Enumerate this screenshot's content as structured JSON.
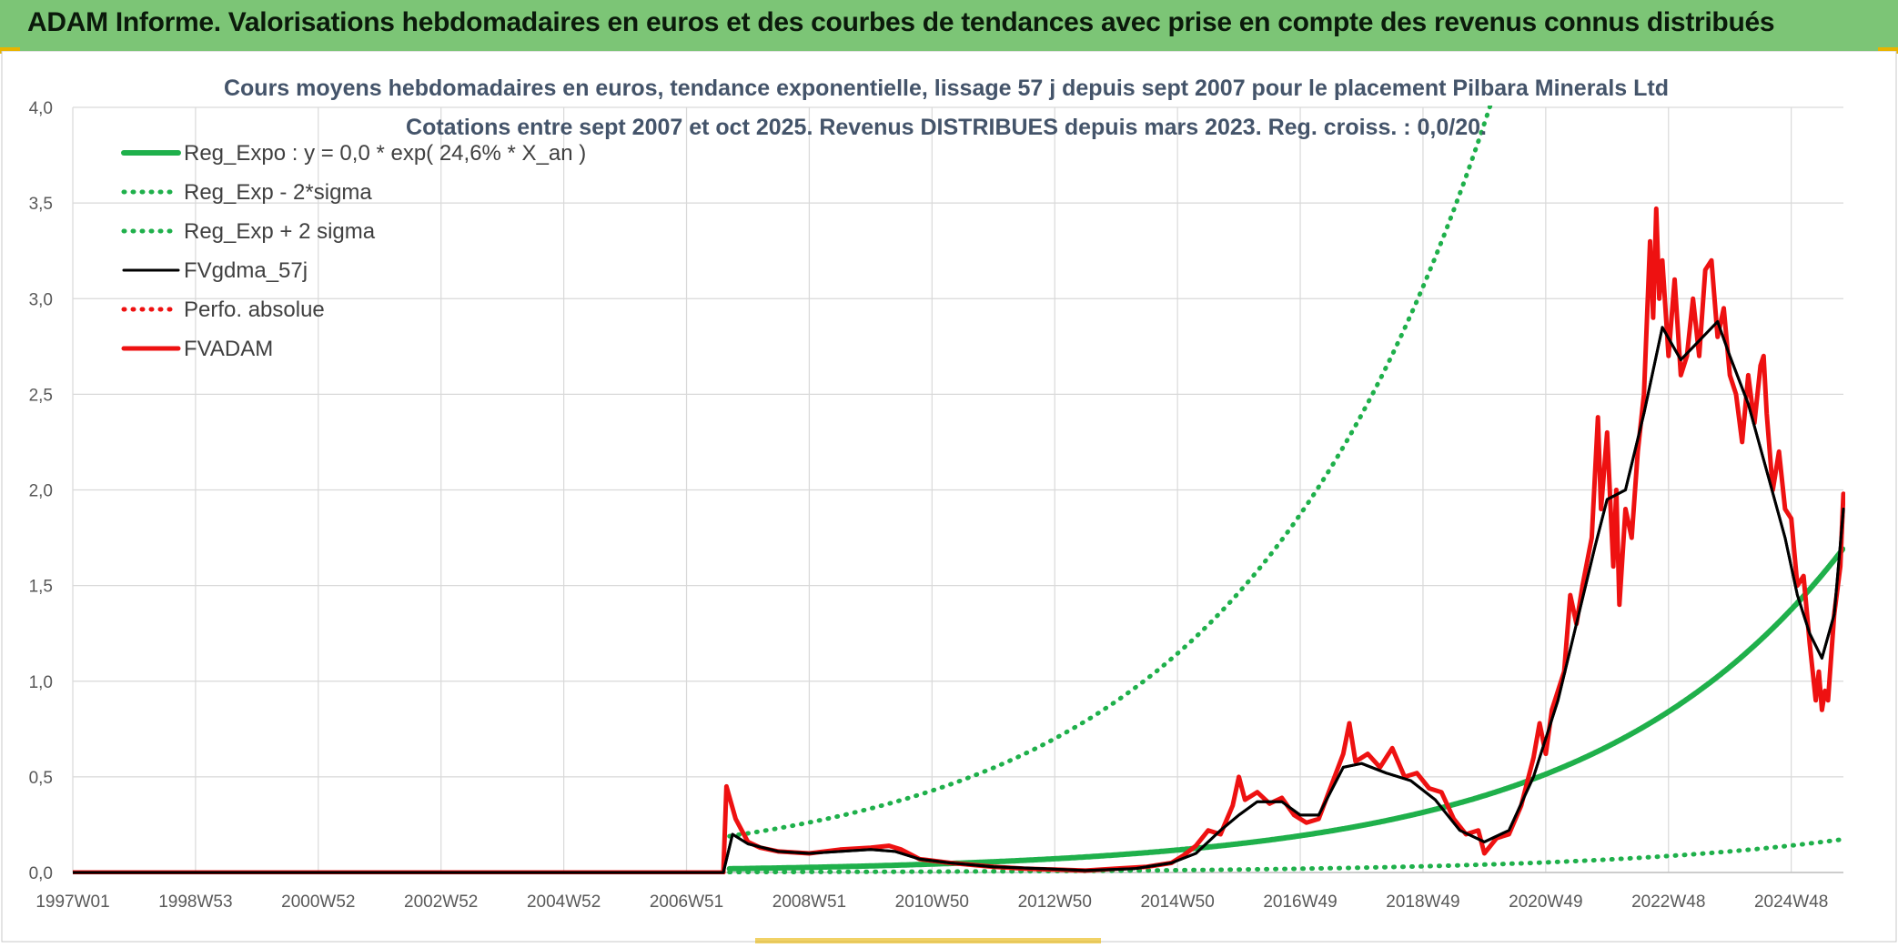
{
  "header": {
    "title": "ADAM Informe. Valorisations hebdomadaires en euros et des courbes de tendances avec prise en compte des revenus connus distribués"
  },
  "colors": {
    "banner": "#7cc576",
    "reg_green": "#1fb04b",
    "fvadam_red": "#ee1111",
    "gdma_black": "#000000",
    "grid": "#d9d9d9"
  },
  "chart_data": {
    "type": "line",
    "title": "Cours moyens hebdomadaires en euros, tendance exponentielle, lissage 57 j depuis sept 2007 pour le placement Pilbara Minerals Ltd",
    "subtitle": "Cotations entre sept 2007 et oct 2025. Revenus DISTRIBUES depuis mars 2023. Reg. croiss. : 0,0/20.",
    "xlabel": "",
    "ylabel": "",
    "ylim": [
      0,
      4
    ],
    "x_range_years": [
      1997.0,
      2025.85
    ],
    "grid": true,
    "legend_position": "top-left",
    "y_ticks": [
      {
        "value": 0.0,
        "label": "0,0"
      },
      {
        "value": 0.5,
        "label": "0,5"
      },
      {
        "value": 1.0,
        "label": "1,0"
      },
      {
        "value": 1.5,
        "label": "1,5"
      },
      {
        "value": 2.0,
        "label": "2,0"
      },
      {
        "value": 2.5,
        "label": "2,5"
      },
      {
        "value": 3.0,
        "label": "3,0"
      },
      {
        "value": 3.5,
        "label": "3,5"
      },
      {
        "value": 4.0,
        "label": "4,0"
      }
    ],
    "x_ticks": [
      {
        "year": 1997.0,
        "label": "1997W01"
      },
      {
        "year": 1999.0,
        "label": "1998W53"
      },
      {
        "year": 2001.0,
        "label": "2000W52"
      },
      {
        "year": 2003.0,
        "label": "2002W52"
      },
      {
        "year": 2005.0,
        "label": "2004W52"
      },
      {
        "year": 2007.0,
        "label": "2006W51"
      },
      {
        "year": 2009.0,
        "label": "2008W51"
      },
      {
        "year": 2011.0,
        "label": "2010W50"
      },
      {
        "year": 2013.0,
        "label": "2012W50"
      },
      {
        "year": 2015.0,
        "label": "2014W50"
      },
      {
        "year": 2017.0,
        "label": "2016W49"
      },
      {
        "year": 2019.0,
        "label": "2018W49"
      },
      {
        "year": 2021.0,
        "label": "2020W49"
      },
      {
        "year": 2023.0,
        "label": "2022W48"
      },
      {
        "year": 2025.0,
        "label": "2024W48"
      }
    ],
    "series": [
      {
        "name": "Reg_Expo : y = 0,0 * exp( 24,6% *  X_an )",
        "style": "solid-thick",
        "color": "#1fb04b",
        "formula": {
          "kind": "exp",
          "a": 0.0195,
          "rate": 0.246,
          "t0": 2007.7
        },
        "from": 2007.7,
        "to": 2025.85
      },
      {
        "name": "Reg_Exp - 2*sigma",
        "style": "dotted",
        "color": "#1fb04b",
        "formula": {
          "kind": "exp",
          "a": 0.002,
          "rate": 0.246,
          "t0": 2007.7
        },
        "from": 2007.7,
        "to": 2025.85
      },
      {
        "name": "Reg_Exp + 2 sigma",
        "style": "dotted",
        "color": "#1fb04b",
        "formula": {
          "kind": "exp",
          "a": 0.19,
          "rate": 0.246,
          "t0": 2007.7
        },
        "from": 2007.7,
        "to": 2025.85
      },
      {
        "name": "FVgdma_57j",
        "style": "solid",
        "color": "#000000",
        "points": [
          [
            1997.0,
            0.0
          ],
          [
            2007.6,
            0.0
          ],
          [
            2007.75,
            0.2
          ],
          [
            2008.0,
            0.15
          ],
          [
            2008.5,
            0.11
          ],
          [
            2009.0,
            0.1
          ],
          [
            2009.5,
            0.11
          ],
          [
            2010.0,
            0.12
          ],
          [
            2010.4,
            0.11
          ],
          [
            2010.8,
            0.07
          ],
          [
            2011.3,
            0.05
          ],
          [
            2012.0,
            0.03
          ],
          [
            2012.8,
            0.02
          ],
          [
            2013.5,
            0.01
          ],
          [
            2014.3,
            0.02
          ],
          [
            2014.9,
            0.05
          ],
          [
            2015.3,
            0.1
          ],
          [
            2015.7,
            0.22
          ],
          [
            2016.0,
            0.3
          ],
          [
            2016.3,
            0.37
          ],
          [
            2016.7,
            0.37
          ],
          [
            2017.0,
            0.3
          ],
          [
            2017.3,
            0.3
          ],
          [
            2017.7,
            0.55
          ],
          [
            2018.0,
            0.57
          ],
          [
            2018.4,
            0.52
          ],
          [
            2018.8,
            0.48
          ],
          [
            2019.2,
            0.38
          ],
          [
            2019.6,
            0.22
          ],
          [
            2020.0,
            0.16
          ],
          [
            2020.4,
            0.22
          ],
          [
            2020.8,
            0.5
          ],
          [
            2021.2,
            0.9
          ],
          [
            2021.5,
            1.3
          ],
          [
            2021.8,
            1.7
          ],
          [
            2022.0,
            1.95
          ],
          [
            2022.3,
            2.0
          ],
          [
            2022.6,
            2.4
          ],
          [
            2022.9,
            2.85
          ],
          [
            2023.2,
            2.68
          ],
          [
            2023.5,
            2.78
          ],
          [
            2023.8,
            2.88
          ],
          [
            2024.0,
            2.7
          ],
          [
            2024.3,
            2.45
          ],
          [
            2024.6,
            2.1
          ],
          [
            2024.9,
            1.75
          ],
          [
            2025.1,
            1.45
          ],
          [
            2025.3,
            1.25
          ],
          [
            2025.5,
            1.12
          ],
          [
            2025.7,
            1.35
          ],
          [
            2025.85,
            1.9
          ]
        ]
      },
      {
        "name": "Perfo. absolue",
        "style": "dotted",
        "color": "#ee1111",
        "points": []
      },
      {
        "name": "FVADAM",
        "style": "solid-thick",
        "color": "#ee1111",
        "points": [
          [
            1997.0,
            0.0
          ],
          [
            2007.6,
            0.0
          ],
          [
            2007.65,
            0.45
          ],
          [
            2007.8,
            0.28
          ],
          [
            2008.0,
            0.16
          ],
          [
            2008.2,
            0.13
          ],
          [
            2008.5,
            0.11
          ],
          [
            2009.0,
            0.1
          ],
          [
            2009.5,
            0.12
          ],
          [
            2010.0,
            0.13
          ],
          [
            2010.3,
            0.14
          ],
          [
            2010.5,
            0.12
          ],
          [
            2010.8,
            0.07
          ],
          [
            2011.3,
            0.05
          ],
          [
            2012.0,
            0.03
          ],
          [
            2012.5,
            0.02
          ],
          [
            2013.0,
            0.015
          ],
          [
            2013.5,
            0.01
          ],
          [
            2014.0,
            0.02
          ],
          [
            2014.5,
            0.03
          ],
          [
            2014.9,
            0.05
          ],
          [
            2015.1,
            0.09
          ],
          [
            2015.3,
            0.14
          ],
          [
            2015.5,
            0.22
          ],
          [
            2015.7,
            0.2
          ],
          [
            2015.9,
            0.35
          ],
          [
            2016.0,
            0.5
          ],
          [
            2016.1,
            0.38
          ],
          [
            2016.3,
            0.42
          ],
          [
            2016.5,
            0.36
          ],
          [
            2016.7,
            0.39
          ],
          [
            2016.9,
            0.3
          ],
          [
            2017.1,
            0.26
          ],
          [
            2017.3,
            0.28
          ],
          [
            2017.5,
            0.45
          ],
          [
            2017.7,
            0.62
          ],
          [
            2017.8,
            0.78
          ],
          [
            2017.9,
            0.58
          ],
          [
            2018.1,
            0.62
          ],
          [
            2018.3,
            0.55
          ],
          [
            2018.5,
            0.65
          ],
          [
            2018.7,
            0.5
          ],
          [
            2018.9,
            0.52
          ],
          [
            2019.1,
            0.44
          ],
          [
            2019.3,
            0.42
          ],
          [
            2019.5,
            0.28
          ],
          [
            2019.7,
            0.2
          ],
          [
            2019.9,
            0.22
          ],
          [
            2020.0,
            0.1
          ],
          [
            2020.2,
            0.18
          ],
          [
            2020.4,
            0.2
          ],
          [
            2020.6,
            0.35
          ],
          [
            2020.8,
            0.6
          ],
          [
            2020.9,
            0.78
          ],
          [
            2021.0,
            0.62
          ],
          [
            2021.1,
            0.85
          ],
          [
            2021.3,
            1.05
          ],
          [
            2021.4,
            1.45
          ],
          [
            2021.5,
            1.3
          ],
          [
            2021.6,
            1.5
          ],
          [
            2021.75,
            1.75
          ],
          [
            2021.85,
            2.38
          ],
          [
            2021.9,
            1.9
          ],
          [
            2022.0,
            2.3
          ],
          [
            2022.1,
            1.6
          ],
          [
            2022.15,
            2.0
          ],
          [
            2022.2,
            1.4
          ],
          [
            2022.3,
            1.9
          ],
          [
            2022.4,
            1.75
          ],
          [
            2022.5,
            2.2
          ],
          [
            2022.6,
            2.5
          ],
          [
            2022.7,
            3.3
          ],
          [
            2022.75,
            2.9
          ],
          [
            2022.8,
            3.47
          ],
          [
            2022.85,
            3.0
          ],
          [
            2022.9,
            3.2
          ],
          [
            2023.0,
            2.7
          ],
          [
            2023.1,
            3.1
          ],
          [
            2023.2,
            2.6
          ],
          [
            2023.3,
            2.7
          ],
          [
            2023.4,
            3.0
          ],
          [
            2023.5,
            2.7
          ],
          [
            2023.6,
            3.15
          ],
          [
            2023.7,
            3.2
          ],
          [
            2023.8,
            2.8
          ],
          [
            2023.9,
            2.95
          ],
          [
            2024.0,
            2.6
          ],
          [
            2024.1,
            2.5
          ],
          [
            2024.2,
            2.25
          ],
          [
            2024.3,
            2.6
          ],
          [
            2024.4,
            2.35
          ],
          [
            2024.5,
            2.65
          ],
          [
            2024.55,
            2.7
          ],
          [
            2024.6,
            2.4
          ],
          [
            2024.7,
            2.0
          ],
          [
            2024.8,
            2.2
          ],
          [
            2024.9,
            1.9
          ],
          [
            2025.0,
            1.85
          ],
          [
            2025.1,
            1.5
          ],
          [
            2025.2,
            1.55
          ],
          [
            2025.3,
            1.2
          ],
          [
            2025.4,
            0.9
          ],
          [
            2025.45,
            1.05
          ],
          [
            2025.5,
            0.85
          ],
          [
            2025.55,
            0.95
          ],
          [
            2025.6,
            0.9
          ],
          [
            2025.7,
            1.35
          ],
          [
            2025.8,
            1.6
          ],
          [
            2025.85,
            1.98
          ]
        ]
      }
    ]
  }
}
